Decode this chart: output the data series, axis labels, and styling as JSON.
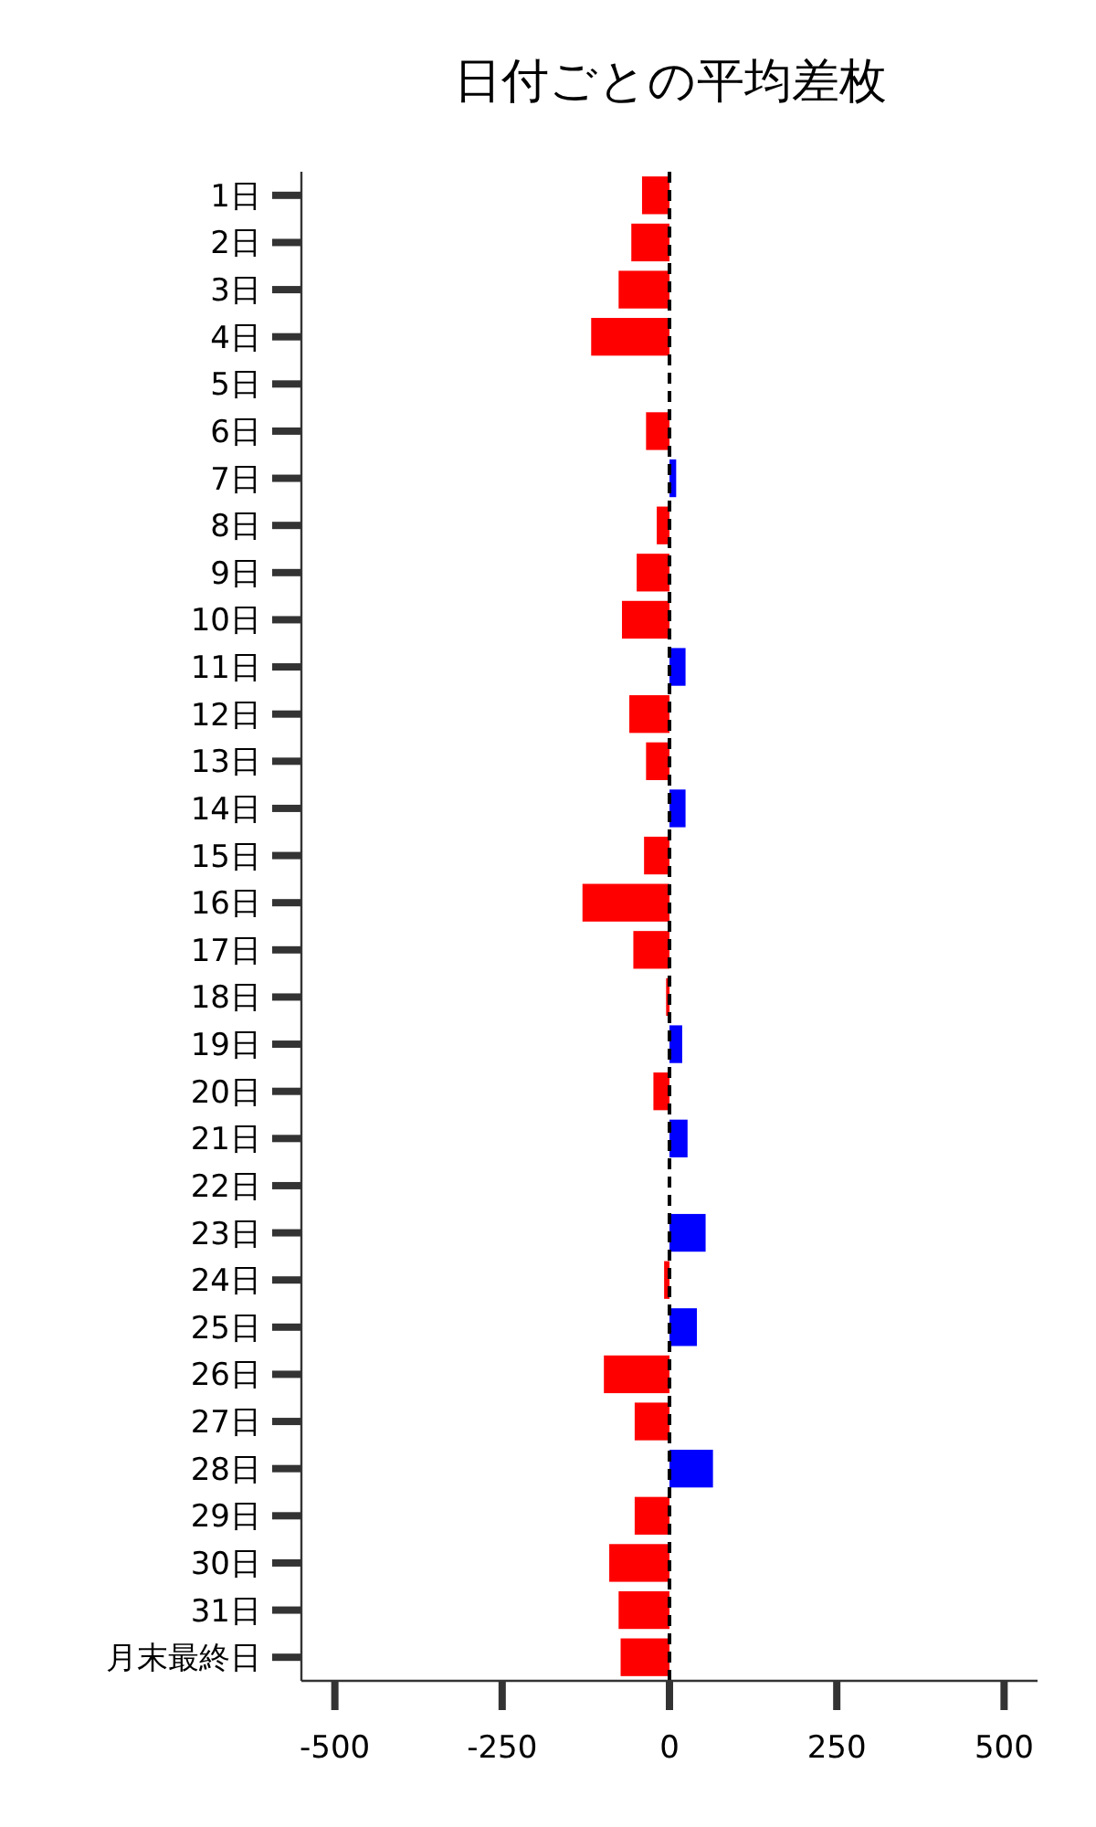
{
  "chart_data": {
    "type": "bar",
    "orientation": "horizontal",
    "title": "日付ごとの平均差枚",
    "categories": [
      "1日",
      "2日",
      "3日",
      "4日",
      "5日",
      "6日",
      "7日",
      "8日",
      "9日",
      "10日",
      "11日",
      "12日",
      "13日",
      "14日",
      "15日",
      "16日",
      "17日",
      "18日",
      "19日",
      "20日",
      "21日",
      "22日",
      "23日",
      "24日",
      "25日",
      "26日",
      "27日",
      "28日",
      "29日",
      "30日",
      "31日",
      "月末最終日"
    ],
    "values": [
      -41,
      -57,
      -76,
      -117,
      0,
      -35,
      10,
      -19,
      -49,
      -71,
      24,
      -60,
      -35,
      24,
      -38,
      -130,
      -54,
      -5,
      19,
      -24,
      27,
      0,
      54,
      -8,
      41,
      -98,
      -52,
      65,
      -52,
      -90,
      -76,
      -73
    ],
    "colors": [
      "#ff0000",
      "#ff0000",
      "#ff0000",
      "#ff0000",
      "#ff0000",
      "#ff0000",
      "#0000ff",
      "#ff0000",
      "#ff0000",
      "#ff0000",
      "#0000ff",
      "#ff0000",
      "#ff0000",
      "#0000ff",
      "#ff0000",
      "#ff0000",
      "#ff0000",
      "#ff0000",
      "#0000ff",
      "#ff0000",
      "#0000ff",
      "#ff0000",
      "#0000ff",
      "#ff0000",
      "#0000ff",
      "#ff0000",
      "#ff0000",
      "#0000ff",
      "#ff0000",
      "#ff0000",
      "#ff0000",
      "#ff0000"
    ],
    "xlim": [
      -550,
      550
    ],
    "xticks": [
      -500,
      -250,
      0,
      250,
      500
    ],
    "ref_lines": [
      {
        "axis": "x",
        "value": 0,
        "color": "#000000",
        "line_style": "dashed"
      }
    ]
  }
}
